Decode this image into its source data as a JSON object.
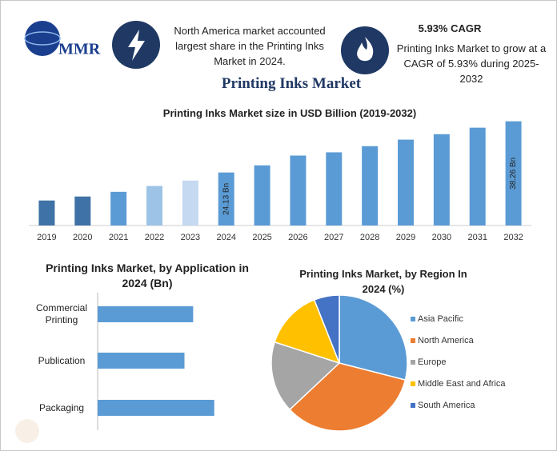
{
  "header": {
    "logo": "MMR",
    "note": "North America market accounted largest share in the Printing Inks Market in 2024.",
    "cagr_title": "5.93% CAGR",
    "cagr_text": "Printing Inks Market to grow at a CAGR of 5.93% during 2025-2032",
    "title": "Printing Inks Market"
  },
  "chart_data": [
    {
      "type": "bar",
      "title": "Printing Inks Market size in USD Billion (2019-2032)",
      "categories": [
        "2019",
        "2020",
        "2021",
        "2022",
        "2023",
        "2024",
        "2025",
        "2026",
        "2027",
        "2028",
        "2029",
        "2030",
        "2031",
        "2032"
      ],
      "values": [
        16.4,
        17.5,
        18.8,
        20.4,
        21.9,
        24.13,
        26.1,
        28.8,
        29.7,
        31.4,
        33.2,
        34.7,
        36.5,
        38.26
      ],
      "value_labels": [
        null,
        null,
        null,
        null,
        null,
        "24.13 Bn",
        null,
        null,
        null,
        null,
        null,
        null,
        null,
        "38.26 Bn"
      ],
      "colors": [
        "#3f72a6",
        "#3f72a6",
        "#5b9bd5",
        "#9dc3e6",
        "#c5d9f0",
        "#5b9bd5",
        "#5b9bd5",
        "#5b9bd5",
        "#5b9bd5",
        "#5b9bd5",
        "#5b9bd5",
        "#5b9bd5",
        "#5b9bd5",
        "#5b9bd5"
      ],
      "ylim": [
        9.5,
        40
      ]
    },
    {
      "type": "bar",
      "orientation": "horizontal",
      "title": "Printing Inks Market, by Application in 2024 (Bn)",
      "categories": [
        "Commercial Printing",
        "Publication",
        "Packaging"
      ],
      "values": [
        7.7,
        7.0,
        9.4
      ],
      "color": "#5b9bd5",
      "xlim": [
        0,
        10
      ]
    },
    {
      "type": "pie",
      "title": "Printing Inks Market, by Region In 2024 (%)",
      "categories": [
        "Asia Pacific",
        "North America",
        "Europe",
        "Middle East and Africa",
        "South America"
      ],
      "values": [
        29,
        34,
        17,
        14,
        6
      ],
      "colors": [
        "#5b9bd5",
        "#ed7d31",
        "#a5a5a5",
        "#ffc000",
        "#4472c4"
      ],
      "legend": "right"
    }
  ]
}
